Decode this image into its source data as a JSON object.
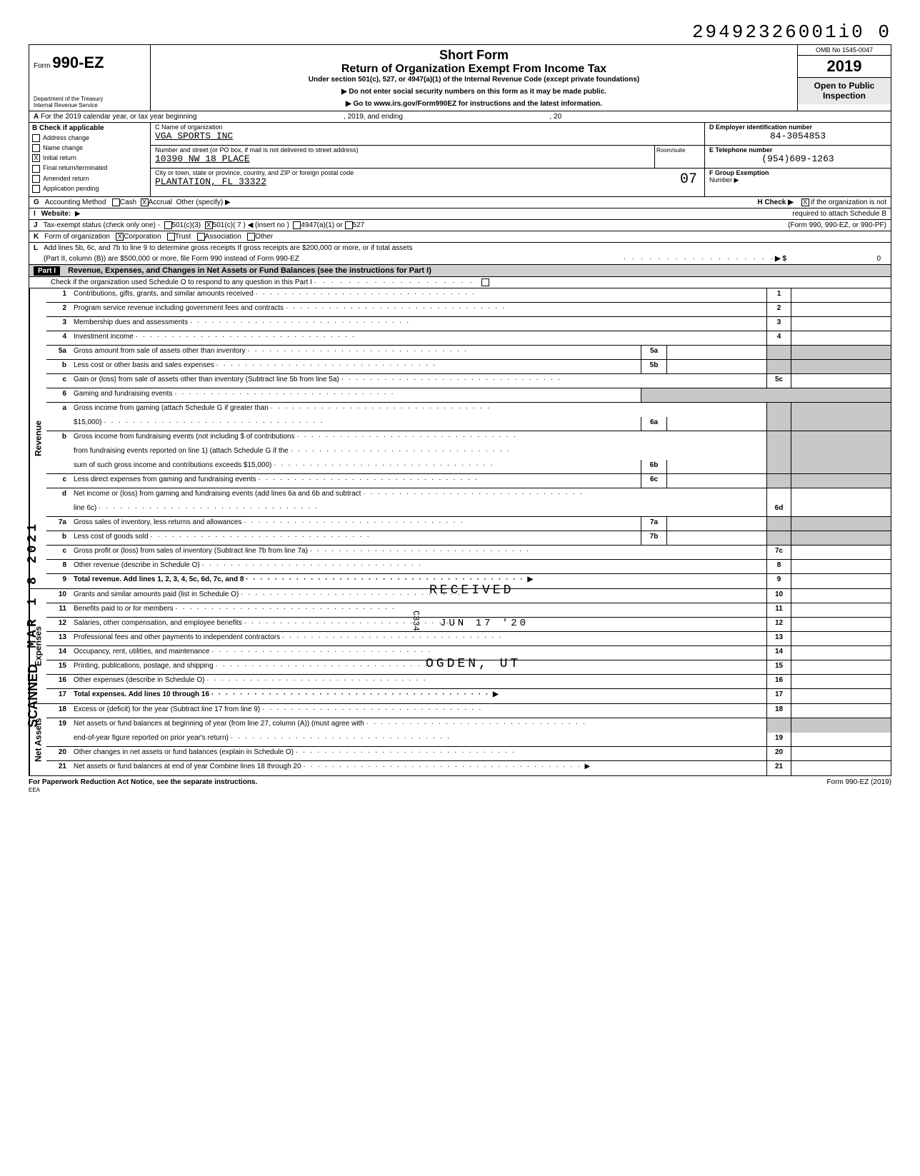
{
  "top_number": "29492326001i0  0",
  "header": {
    "form_label": "Form",
    "form_number": "990-EZ",
    "dept": "Department of the Treasury\nInternal Revenue Service",
    "title1": "Short Form",
    "title2": "Return of Organization Exempt From Income Tax",
    "sub": "Under section 501(c), 527, or 4947(a)(1) of the Internal Revenue Code (except private foundations)",
    "arrow1": "▶  Do not enter social security numbers on this form as it may be made public.",
    "arrow2": "▶  Go to www.irs.gov/Form990EZ for instructions and the latest information.",
    "omb": "OMB No 1545-0047",
    "year": "2019",
    "inspect1": "Open to Public",
    "inspect2": "Inspection"
  },
  "row_a": {
    "label": "A",
    "text1": "For the 2019 calendar year, or tax year beginning",
    "text2": ", 2019, and ending",
    "text3": ", 20"
  },
  "section_b": {
    "label": "B",
    "title": "Check if applicable",
    "items": [
      {
        "checked": false,
        "label": "Address change"
      },
      {
        "checked": false,
        "label": "Name change"
      },
      {
        "checked": true,
        "label": "Initial return"
      },
      {
        "checked": false,
        "label": "Final return/terminated"
      },
      {
        "checked": false,
        "label": "Amended return"
      },
      {
        "checked": false,
        "label": "Application pending"
      }
    ]
  },
  "section_c": {
    "name_label": "C  Name of organization",
    "name_value": "VGA SPORTS INC",
    "addr_label": "Number and street (or PO box, if mail is not delivered to street address)",
    "addr_value": "10390 NW 18 PLACE",
    "room_label": "Room/suite",
    "city_label": "City or town, state or province, country, and ZIP or foreign postal code",
    "city_value": "PLANTATION, FL 33322",
    "stamp07": "07"
  },
  "section_d": {
    "label": "D  Employer identification number",
    "value": "84-3054853"
  },
  "section_e": {
    "label": "E  Telephone number",
    "value": "(954)609-1263"
  },
  "section_f": {
    "label": "F  Group Exemption",
    "label2": "Number  ▶"
  },
  "row_g": {
    "label": "G",
    "title": "Accounting Method",
    "cash": "Cash",
    "accrual": "Accrual",
    "other": "Other (specify) ▶",
    "h_label": "H  Check ▶",
    "h_text": "if the organization is not"
  },
  "row_i": {
    "label": "I",
    "title": "Website:",
    "arrow": "▶",
    "h_text2": "required to attach Schedule B"
  },
  "row_j": {
    "label": "J",
    "title": "Tax-exempt status (check only one) -",
    "c3": "501(c)(3)",
    "c7": "501(c)( 7  )",
    "insert": "◀ (insert no )",
    "a1": "4947(a)(1) or",
    "s527": "527",
    "form_text": "(Form 990, 990-EZ, or 990-PF)"
  },
  "row_k": {
    "label": "K",
    "title": "Form of organization",
    "corp": "Corporation",
    "trust": "Trust",
    "assoc": "Association",
    "other": "Other"
  },
  "row_l": {
    "label": "L",
    "text1": "Add lines 5b, 6c, and 7b to line 9 to determine gross receipts If gross receipts are $200,000 or more, or if total assets",
    "text2": "(Part II, column (B)) are $500,000 or more, file Form 990 instead of Form 990-EZ",
    "arrow": "▶ $",
    "value": "0"
  },
  "part1": {
    "num": "Part I",
    "title": "Revenue, Expenses, and Changes in Net Assets or Fund Balances (see the instructions for Part I)",
    "check_text": "Check if the organization used Schedule O to respond to any question in this Part I"
  },
  "revenue_lines": [
    {
      "no": "1",
      "desc": "Contributions, gifts, grants, and similar amounts received",
      "rbox": "1"
    },
    {
      "no": "2",
      "desc": "Program service revenue including government fees and contracts",
      "rbox": "2"
    },
    {
      "no": "3",
      "desc": "Membership dues and assessments",
      "rbox": "3"
    },
    {
      "no": "4",
      "desc": "Investment income",
      "rbox": "4"
    },
    {
      "no": "5a",
      "desc": "Gross amount from sale of assets other than inventory",
      "mbox": "5a",
      "shaded": true
    },
    {
      "no": "b",
      "desc": "Less cost or other basis and sales expenses",
      "mbox": "5b",
      "shaded": true
    },
    {
      "no": "c",
      "desc": "Gain or (loss) from sale of assets other than inventory (Subtract line 5b from line 5a)",
      "rbox": "5c"
    },
    {
      "no": "6",
      "desc": "Gaming and fundraising events",
      "shaded_full": true
    },
    {
      "no": "a",
      "desc": "Gross income from gaming (attach Schedule G if greater than",
      "no_bottom": true,
      "shaded": true
    },
    {
      "no": "",
      "desc": "$15,000)",
      "mbox": "6a",
      "shaded": true
    },
    {
      "no": "b",
      "desc": "Gross income from fundraising events (not including   $                       of contributions",
      "no_bottom": true,
      "shaded": true
    },
    {
      "no": "",
      "desc": "from fundraising events reported on line 1) (attach Schedule G if the",
      "no_bottom": true,
      "shaded": true
    },
    {
      "no": "",
      "desc": "sum of such gross income and contributions exceeds $15,000)",
      "mbox": "6b",
      "shaded": true
    },
    {
      "no": "c",
      "desc": "Less direct expenses from gaming and fundraising events",
      "mbox": "6c",
      "shaded": true
    },
    {
      "no": "d",
      "desc": "Net income or (loss) from gaming and fundraising events (add lines 6a and 6b and subtract",
      "no_bottom": true
    },
    {
      "no": "",
      "desc": "line 6c)",
      "rbox": "6d"
    },
    {
      "no": "7a",
      "desc": "Gross sales of inventory, less returns and allowances",
      "mbox": "7a",
      "shaded": true
    },
    {
      "no": "b",
      "desc": "Less cost of goods sold",
      "mbox": "7b",
      "shaded": true
    },
    {
      "no": "c",
      "desc": "Gross profit or (loss) from sales of inventory (Subtract line 7b from line 7a)",
      "rbox": "7c"
    },
    {
      "no": "8",
      "desc": "Other revenue (describe in Schedule O)",
      "rbox": "8"
    },
    {
      "no": "9",
      "desc": "Total revenue.  Add lines 1, 2, 3, 4, 5c, 6d, 7c, and 8",
      "rbox": "9",
      "bold": true,
      "arrow": true
    }
  ],
  "expense_lines": [
    {
      "no": "10",
      "desc": "Grants and similar amounts paid (list in Schedule O)",
      "rbox": "10"
    },
    {
      "no": "11",
      "desc": "Benefits paid to or for members",
      "rbox": "11"
    },
    {
      "no": "12",
      "desc": "Salaries, other compensation, and employee benefits",
      "rbox": "12"
    },
    {
      "no": "13",
      "desc": "Professional fees and other payments to independent contractors",
      "rbox": "13"
    },
    {
      "no": "14",
      "desc": "Occupancy, rent, utilities, and maintenance",
      "rbox": "14"
    },
    {
      "no": "15",
      "desc": "Printing, publications, postage, and shipping",
      "rbox": "15"
    },
    {
      "no": "16",
      "desc": "Other expenses (describe in Schedule O)",
      "rbox": "16"
    },
    {
      "no": "17",
      "desc": "Total expenses.  Add lines 10 through 16",
      "rbox": "17",
      "bold": true,
      "arrow": true
    }
  ],
  "netasset_lines": [
    {
      "no": "18",
      "desc": "Excess or (deficit) for the year (Subtract line 17 from line 9)",
      "rbox": "18"
    },
    {
      "no": "19",
      "desc": "Net assets or fund balances at beginning of year (from line 27, column (A)) (must agree with",
      "no_bottom": true,
      "shaded_r": true
    },
    {
      "no": "",
      "desc": "end-of-year figure reported on prior year's return)",
      "rbox": "19"
    },
    {
      "no": "20",
      "desc": "Other changes in net assets or fund balances (explain in Schedule O)",
      "rbox": "20"
    },
    {
      "no": "21",
      "desc": "Net assets or fund balances at end of year Combine lines 18 through 20",
      "rbox": "21",
      "arrow": true
    }
  ],
  "stamps": {
    "received": "RECEIVED",
    "date": "JUN 17 '20",
    "ogden": "OGDEN, UT",
    "c334": "C334"
  },
  "side_marks": {
    "scan_date": "MAR 1 8 2021",
    "scanned": "SCANNED"
  },
  "footer": {
    "left": "For Paperwork Reduction Act Notice, see the separate instructions.",
    "eea": "EEA",
    "right": "Form 990-EZ (2019)"
  },
  "colors": {
    "bg": "#ffffff",
    "text": "#000000",
    "shade": "#c8c8c8",
    "part_bg": "#d0d0d0",
    "inspect_bg": "#e8e8e8"
  }
}
